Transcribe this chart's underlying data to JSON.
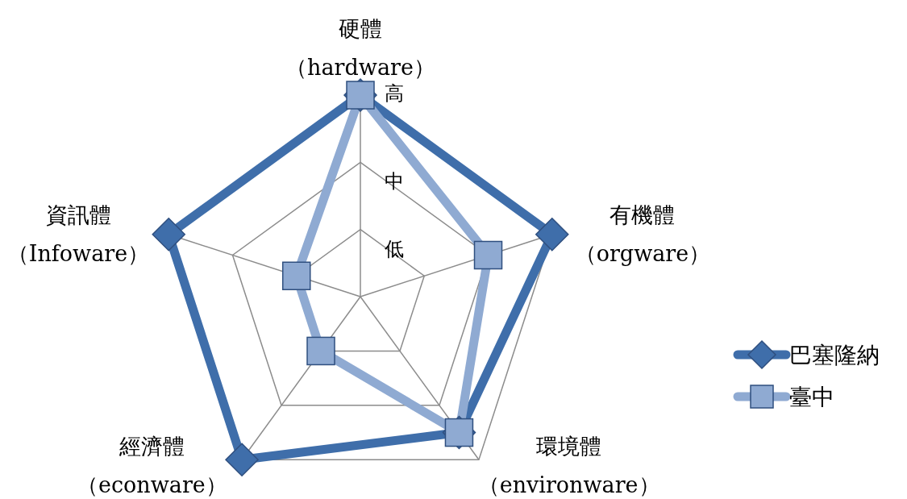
{
  "chart_data": {
    "type": "radar",
    "categories": [
      "硬體（hardware）",
      "有機體（orgware）",
      "環境體（environware）",
      "經濟體（econware）",
      "資訊體（Infoware）"
    ],
    "series": [
      {
        "name": "巴塞隆納",
        "color": "#3f6eaa",
        "marker": "diamond",
        "values": [
          3,
          3,
          2.5,
          3,
          3
        ]
      },
      {
        "name": "臺中",
        "color": "#8faad2",
        "marker": "square",
        "values": [
          3,
          2,
          2.5,
          1,
          1
        ]
      }
    ],
    "ylim": [
      0,
      3
    ],
    "yticks": [
      {
        "value": 1,
        "label": "低"
      },
      {
        "value": 2,
        "label": "中"
      },
      {
        "value": 3,
        "label": "高"
      }
    ],
    "grid": true,
    "legend": "right"
  }
}
